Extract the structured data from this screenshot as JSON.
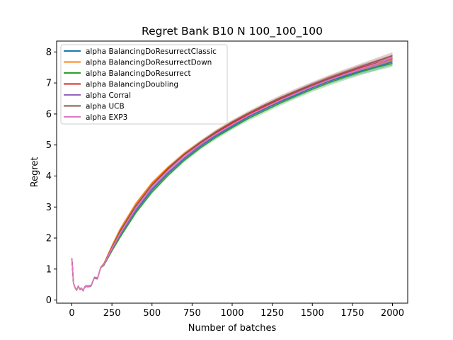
{
  "chart_data": {
    "type": "line",
    "title": "Regret Bank B10 N 100_100_100",
    "xlabel": "Number of batches",
    "ylabel": "Regret",
    "xlim": [
      -95,
      2095
    ],
    "ylim": [
      -0.1,
      8.35
    ],
    "xticks": [
      0,
      250,
      500,
      750,
      1000,
      1250,
      1500,
      1750,
      2000
    ],
    "yticks": [
      0,
      1,
      2,
      3,
      4,
      5,
      6,
      7,
      8
    ],
    "grid": false,
    "legend_position": "top-left",
    "x": [
      0,
      10,
      20,
      30,
      40,
      50,
      60,
      70,
      80,
      90,
      100,
      120,
      140,
      160,
      180,
      200,
      250,
      300,
      400,
      500,
      600,
      700,
      800,
      900,
      1000,
      1100,
      1200,
      1300,
      1400,
      1500,
      1600,
      1700,
      1800,
      1900,
      2000
    ],
    "series": [
      {
        "name": "alpha BalancingDoResurrectClassic",
        "color": "#1f77b4",
        "values": [
          1.35,
          0.55,
          0.4,
          0.32,
          0.45,
          0.35,
          0.38,
          0.3,
          0.42,
          0.45,
          0.44,
          0.46,
          0.72,
          0.7,
          1.05,
          1.15,
          1.62,
          2.08,
          2.88,
          3.55,
          4.08,
          4.55,
          4.95,
          5.3,
          5.6,
          5.9,
          6.15,
          6.4,
          6.62,
          6.85,
          7.05,
          7.22,
          7.38,
          7.52,
          7.68
        ]
      },
      {
        "name": "alpha BalancingDoResurrectDown",
        "color": "#ff7f0e",
        "values": [
          1.35,
          0.55,
          0.4,
          0.32,
          0.45,
          0.35,
          0.38,
          0.3,
          0.42,
          0.45,
          0.44,
          0.46,
          0.72,
          0.7,
          1.05,
          1.18,
          1.75,
          2.28,
          3.12,
          3.78,
          4.28,
          4.72,
          5.08,
          5.42,
          5.72,
          5.98,
          6.22,
          6.45,
          6.68,
          6.9,
          7.1,
          7.28,
          7.45,
          7.62,
          7.75
        ]
      },
      {
        "name": "alpha BalancingDoResurrect",
        "color": "#2ca02c",
        "values": [
          1.35,
          0.55,
          0.4,
          0.32,
          0.45,
          0.35,
          0.38,
          0.3,
          0.42,
          0.45,
          0.44,
          0.46,
          0.72,
          0.7,
          1.05,
          1.12,
          1.58,
          2.02,
          2.82,
          3.48,
          4.02,
          4.5,
          4.9,
          5.25,
          5.56,
          5.85,
          6.1,
          6.35,
          6.58,
          6.8,
          7.0,
          7.18,
          7.35,
          7.5,
          7.63
        ]
      },
      {
        "name": "alpha BalancingDoubling",
        "color": "#d62728",
        "values": [
          1.35,
          0.55,
          0.4,
          0.32,
          0.45,
          0.35,
          0.38,
          0.3,
          0.42,
          0.45,
          0.44,
          0.46,
          0.72,
          0.7,
          1.05,
          1.16,
          1.68,
          2.2,
          3.02,
          3.7,
          4.22,
          4.68,
          5.05,
          5.4,
          5.7,
          5.98,
          6.24,
          6.48,
          6.7,
          6.92,
          7.12,
          7.3,
          7.48,
          7.64,
          7.8
        ]
      },
      {
        "name": "alpha Corral",
        "color": "#9467bd",
        "values": [
          1.35,
          0.55,
          0.4,
          0.32,
          0.45,
          0.35,
          0.38,
          0.3,
          0.42,
          0.45,
          0.44,
          0.46,
          0.72,
          0.7,
          1.05,
          1.14,
          1.62,
          2.1,
          2.92,
          3.6,
          4.12,
          4.58,
          4.98,
          5.34,
          5.64,
          5.94,
          6.2,
          6.45,
          6.68,
          6.9,
          7.1,
          7.28,
          7.46,
          7.62,
          7.78
        ]
      },
      {
        "name": "alpha UCB",
        "color": "#8c564b",
        "values": [
          1.35,
          0.55,
          0.4,
          0.32,
          0.45,
          0.35,
          0.38,
          0.3,
          0.42,
          0.45,
          0.44,
          0.46,
          0.72,
          0.7,
          1.05,
          1.16,
          1.7,
          2.22,
          3.05,
          3.72,
          4.25,
          4.7,
          5.08,
          5.43,
          5.74,
          6.02,
          6.28,
          6.52,
          6.74,
          6.95,
          7.15,
          7.34,
          7.52,
          7.7,
          7.88
        ]
      },
      {
        "name": "alpha EXP3",
        "color": "#e377c2",
        "values": [
          1.35,
          0.55,
          0.4,
          0.32,
          0.45,
          0.35,
          0.38,
          0.3,
          0.42,
          0.45,
          0.44,
          0.46,
          0.72,
          0.7,
          1.05,
          1.15,
          1.66,
          2.15,
          2.98,
          3.66,
          4.18,
          4.64,
          5.02,
          5.36,
          5.66,
          5.95,
          6.2,
          6.44,
          6.66,
          6.88,
          7.08,
          7.27,
          7.45,
          7.62,
          7.82
        ]
      }
    ]
  }
}
